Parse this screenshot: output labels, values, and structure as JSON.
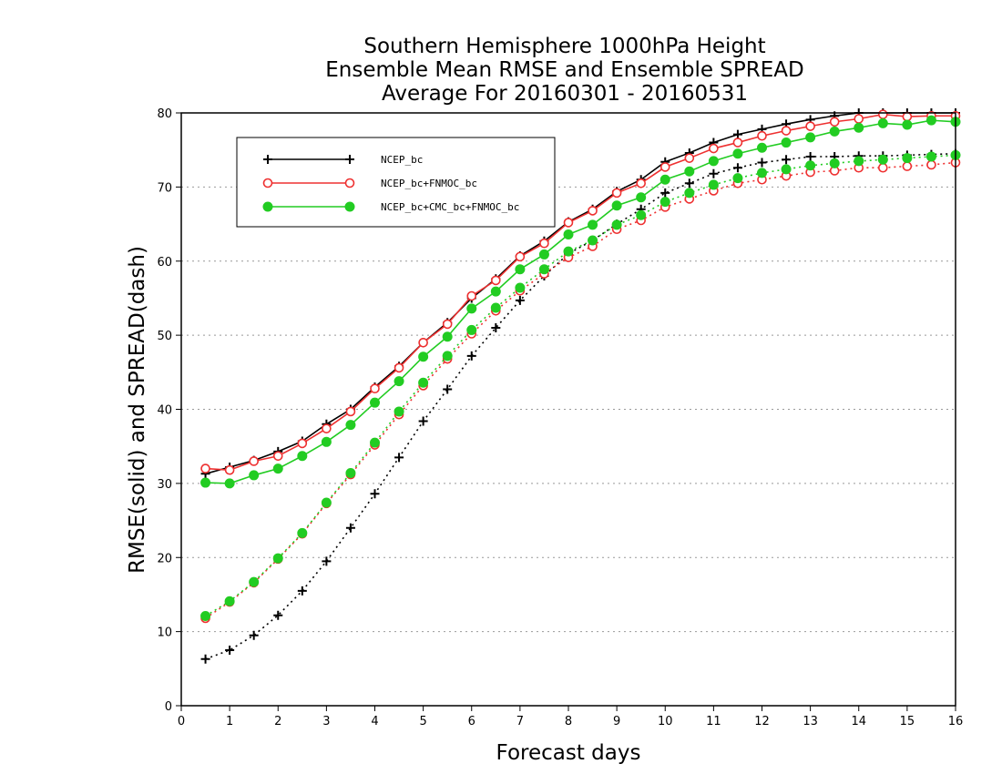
{
  "chart_data": {
    "type": "line",
    "title_lines": [
      "Southern Hemisphere 1000hPa Height",
      "Ensemble Mean RMSE and Ensemble SPREAD",
      "Average For 20160301 - 20160531"
    ],
    "xlabel": "Forecast days",
    "ylabel": "RMSE(solid) and SPREAD(dash)",
    "xlim": [
      0,
      16
    ],
    "ylim": [
      0,
      80
    ],
    "x_ticks": [
      0,
      1,
      2,
      3,
      4,
      5,
      6,
      7,
      8,
      9,
      10,
      11,
      12,
      13,
      14,
      15,
      16
    ],
    "y_ticks": [
      0,
      10,
      20,
      30,
      40,
      50,
      60,
      70,
      80
    ],
    "grid": "horizontal dotted",
    "legend_position": "top-left",
    "x": [
      0.5,
      1,
      1.5,
      2,
      2.5,
      3,
      3.5,
      4,
      4.5,
      5,
      5.5,
      6,
      6.5,
      7,
      7.5,
      8,
      8.5,
      9,
      9.5,
      10,
      10.5,
      11,
      11.5,
      12,
      12.5,
      13,
      13.5,
      14,
      14.5,
      15,
      15.5,
      16
    ],
    "series": [
      {
        "name": "NCEP_bc",
        "color": "#000000",
        "marker": "plus",
        "rmse": [
          31.3,
          32.2,
          33.1,
          34.3,
          35.7,
          38.0,
          40.0,
          43.0,
          45.8,
          49.0,
          51.7,
          55.0,
          57.6,
          60.7,
          62.7,
          65.3,
          67.0,
          69.4,
          71.0,
          73.4,
          74.6,
          76.0,
          77.1,
          77.8,
          78.5,
          79.1,
          79.6,
          80.0,
          80.0,
          80.0,
          80.0,
          80.0
        ],
        "spread": [
          6.3,
          7.5,
          9.5,
          12.2,
          15.5,
          19.5,
          24.0,
          28.6,
          33.5,
          38.4,
          42.7,
          47.2,
          51.0,
          54.7,
          58.0,
          61.0,
          62.8,
          65.0,
          67.0,
          69.2,
          70.5,
          71.8,
          72.6,
          73.3,
          73.7,
          74.1,
          74.1,
          74.2,
          74.2,
          74.3,
          74.4,
          74.5
        ]
      },
      {
        "name": "NCEP_bc+FNMOC_bc",
        "color": "#ee3030",
        "marker": "open-circle",
        "rmse": [
          32.0,
          31.8,
          33.0,
          33.7,
          35.4,
          37.4,
          39.7,
          42.8,
          45.6,
          49.0,
          51.5,
          55.3,
          57.4,
          60.6,
          62.4,
          65.2,
          66.8,
          69.2,
          70.5,
          72.7,
          73.9,
          75.2,
          76.0,
          76.9,
          77.6,
          78.2,
          78.8,
          79.2,
          79.8,
          79.5,
          79.6,
          79.6
        ],
        "spread": [
          11.8,
          14.0,
          16.6,
          19.8,
          23.2,
          27.3,
          31.2,
          35.2,
          39.3,
          43.2,
          46.8,
          50.2,
          53.3,
          56.0,
          58.3,
          60.5,
          62.0,
          64.3,
          65.5,
          67.3,
          68.4,
          69.5,
          70.5,
          71.0,
          71.5,
          72.0,
          72.2,
          72.6,
          72.6,
          72.8,
          73.0,
          73.3
        ]
      },
      {
        "name": "NCEP_bc+CMC_bc+FNMOC_bc",
        "color": "#22cc22",
        "marker": "filled-circle",
        "rmse": [
          30.1,
          30.0,
          31.1,
          32.0,
          33.7,
          35.6,
          37.9,
          40.9,
          43.8,
          47.1,
          49.8,
          53.6,
          55.9,
          58.9,
          60.9,
          63.6,
          64.9,
          67.5,
          68.6,
          71.0,
          72.1,
          73.5,
          74.5,
          75.3,
          76.0,
          76.7,
          77.5,
          78.0,
          78.6,
          78.4,
          79.0,
          78.8
        ],
        "spread": [
          12.1,
          14.1,
          16.7,
          19.9,
          23.3,
          27.4,
          31.4,
          35.5,
          39.7,
          43.6,
          47.2,
          50.7,
          53.7,
          56.4,
          58.9,
          61.3,
          62.8,
          64.9,
          66.2,
          68.0,
          69.2,
          70.3,
          71.2,
          71.9,
          72.4,
          72.9,
          73.2,
          73.5,
          73.7,
          73.9,
          74.1,
          74.3
        ]
      }
    ]
  }
}
